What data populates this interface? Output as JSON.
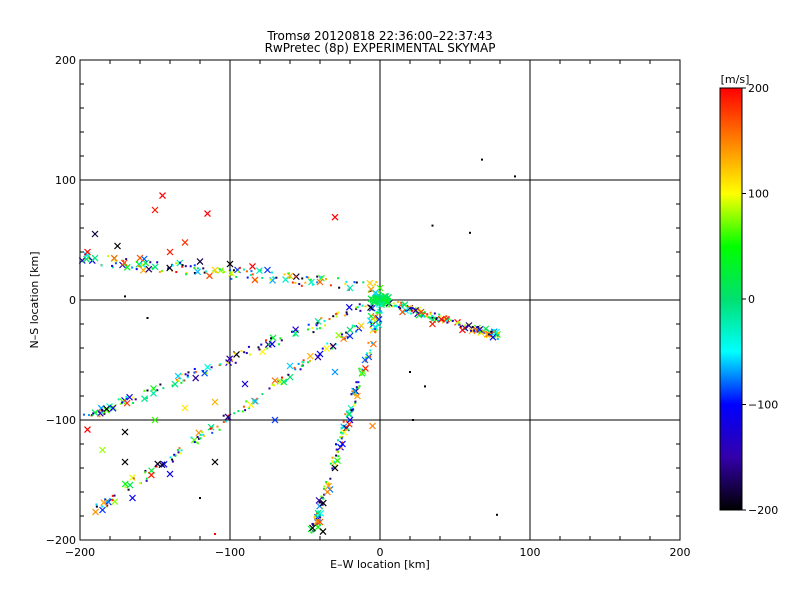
{
  "chart_data": {
    "type": "scatter",
    "title_line1": "Tromsø 20120818 22:36:00–22:37:43",
    "title_line2": "RwPretec (8p) EXPERIMENTAL SKYMAP",
    "xlabel": "E–W location [km]",
    "ylabel": "N–S location [km]",
    "xlim": [
      -200,
      200
    ],
    "ylim": [
      -200,
      200
    ],
    "xticks": [
      -200,
      -100,
      0,
      100,
      200
    ],
    "yticks": [
      -200,
      -100,
      0,
      100,
      200
    ],
    "xtick_labels": [
      "−200",
      "−100",
      "0",
      "100",
      "200"
    ],
    "ytick_labels": [
      "−200",
      "−100",
      "0",
      "100",
      "200"
    ],
    "grid": true,
    "colorbar": {
      "label": "[m/s]",
      "min": -200,
      "max": 200,
      "ticks": [
        200,
        100,
        0,
        -100,
        -200
      ],
      "tick_labels": [
        "200",
        "100",
        "0",
        "−100",
        "−200"
      ],
      "colors": [
        "#000000",
        "#3300aa",
        "#0000ff",
        "#00ffff",
        "#00e070",
        "#00ff00",
        "#ffff00",
        "#ff8000",
        "#ff0000"
      ]
    },
    "beams": [
      {
        "from": [
          0,
          10
        ],
        "to": [
          -200,
          35
        ],
        "y_spread": 5
      },
      {
        "from": [
          0,
          0
        ],
        "to": [
          -200,
          -100
        ],
        "y_spread": 4
      },
      {
        "from": [
          0,
          -10
        ],
        "to": [
          -190,
          -175
        ],
        "y_spread": 4
      },
      {
        "from": [
          0,
          -10
        ],
        "to": [
          -45,
          -195
        ],
        "y_spread": 3
      },
      {
        "from": [
          0,
          0
        ],
        "to": [
          80,
          -30
        ],
        "y_spread": 3
      }
    ],
    "points": [
      {
        "x": -2,
        "y": 2,
        "v": 20,
        "m": "x"
      },
      {
        "x": 2,
        "y": 0,
        "v": 30,
        "m": "x"
      },
      {
        "x": -4,
        "y": -2,
        "v": 15,
        "m": "x"
      },
      {
        "x": 3,
        "y": 3,
        "v": 25,
        "m": "x"
      },
      {
        "x": -1,
        "y": 4,
        "v": 10,
        "m": "x"
      },
      {
        "x": 5,
        "y": -1,
        "v": 35,
        "m": "x"
      },
      {
        "x": -6,
        "y": 1,
        "v": 20,
        "m": "x"
      },
      {
        "x": 1,
        "y": -4,
        "v": -20,
        "m": "x"
      },
      {
        "x": 0,
        "y": 10,
        "v": 60,
        "m": "x"
      },
      {
        "x": -3,
        "y": 6,
        "v": -60,
        "m": "x"
      },
      {
        "x": -20,
        "y": 10,
        "v": -20,
        "m": "x"
      },
      {
        "x": -40,
        "y": 15,
        "v": 160,
        "m": "x"
      },
      {
        "x": -60,
        "y": 20,
        "v": 130,
        "m": "x"
      },
      {
        "x": -75,
        "y": 25,
        "v": -90,
        "m": "x"
      },
      {
        "x": -85,
        "y": 28,
        "v": 200,
        "m": "x"
      },
      {
        "x": -100,
        "y": 30,
        "v": -200,
        "m": "x"
      },
      {
        "x": -110,
        "y": 25,
        "v": 120,
        "m": "x"
      },
      {
        "x": -120,
        "y": 32,
        "v": -180,
        "m": "x"
      },
      {
        "x": -140,
        "y": 40,
        "v": 190,
        "m": "x"
      },
      {
        "x": -160,
        "y": 35,
        "v": 170,
        "m": "x"
      },
      {
        "x": -175,
        "y": 45,
        "v": -200,
        "m": "x"
      },
      {
        "x": -190,
        "y": 55,
        "v": -180,
        "m": "x"
      },
      {
        "x": -195,
        "y": 40,
        "v": 200,
        "m": "x"
      },
      {
        "x": -150,
        "y": 75,
        "v": 190,
        "m": "x"
      },
      {
        "x": -145,
        "y": 87,
        "v": 200,
        "m": "x"
      },
      {
        "x": -115,
        "y": 72,
        "v": 200,
        "m": "x"
      },
      {
        "x": -30,
        "y": 69,
        "v": 200,
        "m": "x"
      },
      {
        "x": -130,
        "y": 48,
        "v": 180,
        "m": "x"
      },
      {
        "x": -20,
        "y": -30,
        "v": -90,
        "m": "x"
      },
      {
        "x": -40,
        "y": -45,
        "v": -100,
        "m": "x"
      },
      {
        "x": -60,
        "y": -55,
        "v": -60,
        "m": "x"
      },
      {
        "x": -90,
        "y": -70,
        "v": -120,
        "m": "x"
      },
      {
        "x": -110,
        "y": -85,
        "v": 130,
        "m": "x"
      },
      {
        "x": -130,
        "y": -90,
        "v": 110,
        "m": "x"
      },
      {
        "x": -150,
        "y": -100,
        "v": 60,
        "m": "x"
      },
      {
        "x": -170,
        "y": -110,
        "v": -200,
        "m": "x"
      },
      {
        "x": -185,
        "y": -125,
        "v": 80,
        "m": "x"
      },
      {
        "x": -195,
        "y": -108,
        "v": 200,
        "m": "x"
      },
      {
        "x": -30,
        "y": -60,
        "v": -70,
        "m": "x"
      },
      {
        "x": -70,
        "y": -100,
        "v": -90,
        "m": "x"
      },
      {
        "x": -110,
        "y": -135,
        "v": -200,
        "m": "x"
      },
      {
        "x": -140,
        "y": -145,
        "v": -110,
        "m": "x"
      },
      {
        "x": -165,
        "y": -165,
        "v": -110,
        "m": "x"
      },
      {
        "x": -185,
        "y": -175,
        "v": -90,
        "m": "x"
      },
      {
        "x": -10,
        "y": -50,
        "v": -80,
        "m": "x"
      },
      {
        "x": -15,
        "y": -80,
        "v": 140,
        "m": "x"
      },
      {
        "x": -20,
        "y": -100,
        "v": -110,
        "m": "x"
      },
      {
        "x": -25,
        "y": -120,
        "v": -100,
        "m": "x"
      },
      {
        "x": -30,
        "y": -140,
        "v": -200,
        "m": "x"
      },
      {
        "x": -35,
        "y": -160,
        "v": 150,
        "m": "x"
      },
      {
        "x": -40,
        "y": -185,
        "v": 170,
        "m": "x"
      },
      {
        "x": -45,
        "y": -190,
        "v": -200,
        "m": "x"
      },
      {
        "x": -38,
        "y": -193,
        "v": -200,
        "m": "x"
      },
      {
        "x": -5,
        "y": -105,
        "v": 150,
        "m": "x"
      },
      {
        "x": 15,
        "y": -10,
        "v": 170,
        "m": "x"
      },
      {
        "x": 35,
        "y": -20,
        "v": 190,
        "m": "x"
      },
      {
        "x": 55,
        "y": -25,
        "v": 200,
        "m": "x"
      },
      {
        "x": -170,
        "y": -135,
        "v": -200,
        "m": "x"
      },
      {
        "x": 68,
        "y": 117,
        "v": -200,
        "m": "d"
      },
      {
        "x": 90,
        "y": 103,
        "v": -200,
        "m": "d"
      },
      {
        "x": 35,
        "y": 62,
        "v": -200,
        "m": "d"
      },
      {
        "x": 60,
        "y": 56,
        "v": -200,
        "m": "d"
      },
      {
        "x": 20,
        "y": -60,
        "v": -200,
        "m": "d"
      },
      {
        "x": 30,
        "y": -72,
        "v": -200,
        "m": "d"
      },
      {
        "x": 22,
        "y": -100,
        "v": -200,
        "m": "d"
      },
      {
        "x": 78,
        "y": -179,
        "v": -200,
        "m": "d"
      },
      {
        "x": -155,
        "y": -15,
        "v": -200,
        "m": "d"
      },
      {
        "x": -170,
        "y": 3,
        "v": -200,
        "m": "d"
      },
      {
        "x": -120,
        "y": -165,
        "v": -200,
        "m": "d"
      },
      {
        "x": -110,
        "y": -195,
        "v": 200,
        "m": "d"
      }
    ]
  }
}
